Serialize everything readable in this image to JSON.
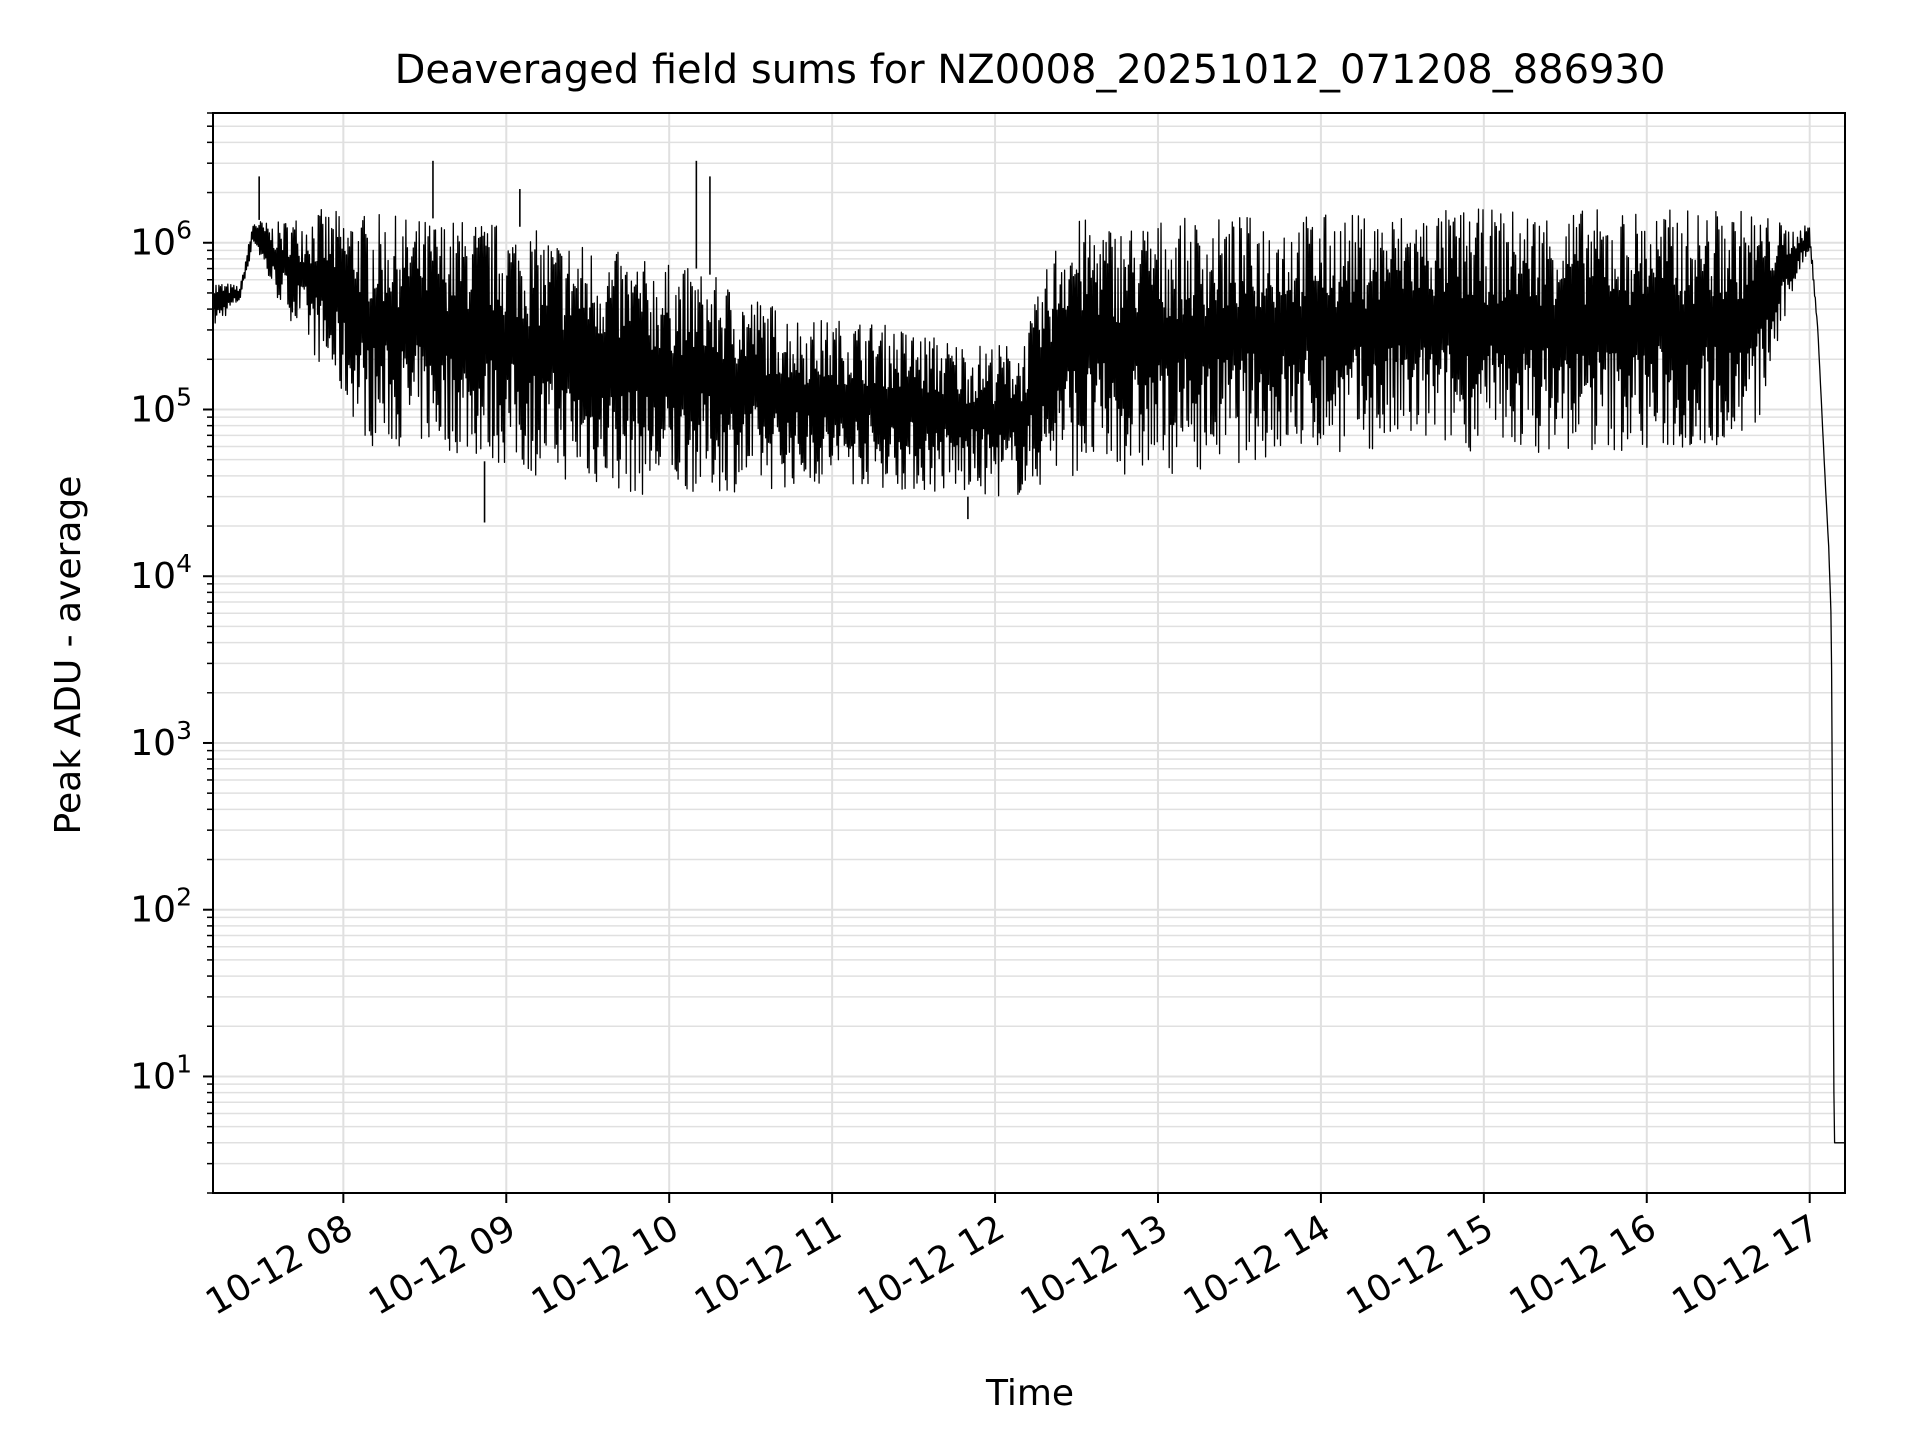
{
  "chart_data": {
    "type": "line",
    "title": "Deaveraged field sums for NZ0008_20251012_071208_886930",
    "xlabel": "Time",
    "ylabel": "Peak ADU - average",
    "x_tick_labels": [
      "10-12 08",
      "10-12 09",
      "10-12 10",
      "10-12 11",
      "10-12 12",
      "10-12 13",
      "10-12 14",
      "10-12 15",
      "10-12 16",
      "10-12 17"
    ],
    "y_tick_exponents": [
      "1",
      "2",
      "3",
      "4",
      "5",
      "6"
    ],
    "y_tick_base": "10",
    "xlim": [
      "2025-10-12 07:12",
      "2025-10-12 17:13"
    ],
    "ylim": [
      2,
      6000000
    ],
    "y_scale": "log",
    "grid": true,
    "line_color": "#000000",
    "grid_color": "#e0e0e0",
    "series": [
      {
        "x": [
          "2025-10-12 07:12",
          "2025-10-12 07:22",
          "2025-10-12 07:27",
          "2025-10-12 07:34",
          "2025-10-12 07:50",
          "2025-10-12 08:10",
          "2025-10-12 08:30",
          "2025-10-12 08:50",
          "2025-10-12 09:10",
          "2025-10-12 09:30",
          "2025-10-12 09:50",
          "2025-10-12 10:10",
          "2025-10-12 10:30",
          "2025-10-12 10:50",
          "2025-10-12 11:10",
          "2025-10-12 11:30",
          "2025-10-12 11:50",
          "2025-10-12 12:10",
          "2025-10-12 12:25",
          "2025-10-12 12:35",
          "2025-10-12 12:45",
          "2025-10-12 13:00",
          "2025-10-12 13:20",
          "2025-10-12 13:40",
          "2025-10-12 14:00",
          "2025-10-12 14:20",
          "2025-10-12 14:40",
          "2025-10-12 15:00",
          "2025-10-12 15:20",
          "2025-10-12 15:40",
          "2025-10-12 16:00",
          "2025-10-12 16:20",
          "2025-10-12 16:40",
          "2025-10-12 16:55",
          "2025-10-12 17:00",
          "2025-10-12 17:03",
          "2025-10-12 17:06",
          "2025-10-12 17:07",
          "2025-10-12 17:08",
          "2025-10-12 17:09",
          "2025-10-12 17:10",
          "2025-10-12 17:13"
        ],
        "upper": [
          600000,
          550000,
          1400000,
          1300000,
          1600000,
          1500000,
          1400000,
          1400000,
          1200000,
          1000000,
          800000,
          700000,
          500000,
          350000,
          350000,
          300000,
          250000,
          250000,
          1400000,
          1400000,
          1300000,
          1400000,
          1400000,
          1500000,
          1500000,
          1500000,
          1600000,
          1600000,
          1600000,
          1600000,
          1600000,
          1600000,
          1600000,
          1200000,
          1300000,
          300000,
          30000,
          15000,
          5000,
          4,
          4,
          4
        ],
        "lower": [
          300000,
          450000,
          1000000,
          500000,
          200000,
          60000,
          60000,
          50000,
          40000,
          35000,
          30000,
          32000,
          32000,
          35000,
          35000,
          32000,
          30000,
          30000,
          40000,
          40000,
          40000,
          40000,
          45000,
          50000,
          55000,
          55000,
          60000,
          55000,
          55000,
          55000,
          55000,
          55000,
          70000,
          600000,
          900000,
          300000,
          30000,
          15000,
          5000,
          4,
          4,
          4
        ]
      }
    ],
    "spikes": [
      {
        "x": "2025-10-12 07:29",
        "y": 2500000
      },
      {
        "x": "2025-10-12 08:33",
        "y": 3100000
      },
      {
        "x": "2025-10-12 09:05",
        "y": 2100000
      },
      {
        "x": "2025-10-12 10:10",
        "y": 3100000
      },
      {
        "x": "2025-10-12 10:15",
        "y": 2500000
      },
      {
        "x": "2025-10-12 08:52",
        "y": 21000
      },
      {
        "x": "2025-10-12 11:50",
        "y": 22000
      }
    ]
  }
}
